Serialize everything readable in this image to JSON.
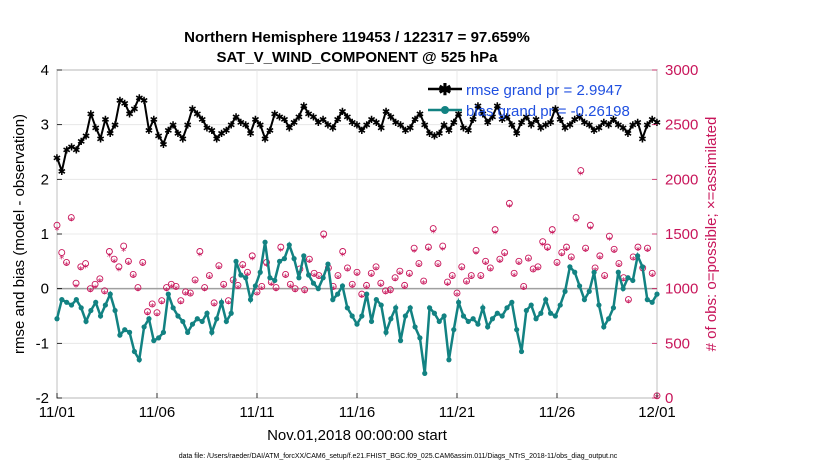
{
  "chart_data": {
    "type": "line",
    "title": "Northern Hemisphere 119453 / 122317 = 97.659%",
    "subtitle": "SAT_V_WIND_COMPONENT @ 525 hPa",
    "xlabel": "Nov.01,2018 00:00:00 start",
    "ylabel": "rmse and bias (model - observation)",
    "y2label": "# of obs: o=possible; ×=assimilated",
    "footer": "data file: /Users/raeder/DAI/ATM_forcXX/CAM6_setup/f.e21.FHIST_BGC.f09_025.CAM6assim.011/Diags_NTrS_2018-11/obs_diag_output.nc",
    "x_ticks": [
      "11/01",
      "11/06",
      "11/11",
      "11/16",
      "11/21",
      "11/26",
      "12/01"
    ],
    "xlim": [
      0,
      30
    ],
    "ylim": [
      -2,
      4
    ],
    "y_ticks": [
      "-2",
      "-1",
      "0",
      "1",
      "2",
      "3",
      "4"
    ],
    "y2lim": [
      0,
      3000
    ],
    "y2_ticks": [
      "0",
      "500",
      "1000",
      "1500",
      "2000",
      "2500",
      "3000"
    ],
    "grid": true,
    "legend_position": "top-right",
    "colors": {
      "rmse": "#000000",
      "bias": "#128282",
      "obs": "#c8155a",
      "legend_text": "#1f4fe0",
      "zero_line": "#a0a0a0"
    },
    "series": [
      {
        "name": "rmse grand pr = 2.9947",
        "axis": "left",
        "marker": "star",
        "values": [
          2.4,
          2.15,
          2.55,
          2.6,
          2.55,
          2.7,
          2.8,
          3.2,
          2.95,
          2.75,
          3.1,
          2.85,
          3.0,
          3.45,
          3.4,
          3.2,
          3.3,
          3.5,
          3.45,
          2.9,
          3.1,
          2.8,
          2.65,
          2.9,
          3.0,
          2.85,
          2.75,
          3.0,
          3.3,
          3.2,
          3.1,
          2.95,
          2.9,
          2.75,
          2.85,
          2.9,
          3.0,
          3.15,
          3.05,
          3.0,
          2.85,
          3.1,
          3.0,
          2.75,
          2.9,
          3.2,
          3.15,
          3.1,
          2.95,
          3.05,
          3.15,
          3.35,
          3.2,
          3.15,
          3.05,
          3.1,
          3.0,
          2.95,
          3.1,
          3.25,
          3.15,
          3.05,
          3.0,
          2.9,
          3.0,
          3.1,
          3.05,
          2.95,
          3.25,
          3.15,
          3.05,
          3.0,
          2.9,
          2.95,
          3.1,
          3.2,
          3.0,
          2.85,
          2.8,
          2.85,
          3.0,
          2.9,
          3.05,
          3.2,
          2.95,
          2.9,
          3.1,
          3.35,
          3.2,
          3.05,
          3.15,
          3.35,
          3.1,
          3.15,
          3.0,
          2.85,
          3.05,
          3.15,
          3.0,
          3.1,
          2.95,
          3.0,
          3.05,
          3.3,
          3.1,
          2.95,
          3.0,
          3.1,
          3.15,
          3.05,
          3.0,
          2.9,
          2.95,
          3.05,
          3.0,
          3.1,
          3.0,
          2.95,
          2.85,
          3.0,
          3.05,
          2.75,
          3.0,
          3.1,
          3.05
        ]
      },
      {
        "name": "bias grand pr = -0.26198",
        "axis": "left",
        "marker": "circle",
        "values": [
          -0.55,
          -0.2,
          -0.25,
          -0.3,
          -0.2,
          -0.35,
          -0.6,
          -0.4,
          -0.25,
          -0.5,
          -0.3,
          -0.1,
          -0.4,
          -0.85,
          -0.75,
          -0.8,
          -1.15,
          -1.3,
          -0.7,
          -0.55,
          -0.95,
          -0.9,
          -0.8,
          -0.1,
          -0.35,
          -0.5,
          -0.6,
          -0.8,
          -0.65,
          -0.55,
          -0.6,
          -0.45,
          -0.8,
          -0.55,
          -0.25,
          -0.6,
          -0.45,
          0.5,
          0.25,
          0.2,
          -0.2,
          0.05,
          0.3,
          0.85,
          0.2,
          0.15,
          0.5,
          0.55,
          0.8,
          0.55,
          0.2,
          0.6,
          0.25,
          0.1,
          0.0,
          0.2,
          0.45,
          -0.2,
          -0.1,
          0.05,
          -0.35,
          -0.5,
          -0.65,
          -0.5,
          -0.1,
          -0.6,
          -0.2,
          -0.3,
          -0.8,
          -0.55,
          -0.35,
          -0.95,
          -0.5,
          -0.35,
          -0.7,
          -0.9,
          -1.55,
          -0.35,
          -0.45,
          -0.6,
          -0.5,
          -1.3,
          -0.75,
          -0.25,
          -0.5,
          -0.6,
          -0.55,
          -0.65,
          -0.35,
          -0.7,
          -0.55,
          -0.45,
          -0.5,
          -0.35,
          -0.25,
          -0.75,
          -1.15,
          -0.4,
          -0.3,
          -0.55,
          -0.45,
          -0.2,
          -0.45,
          -0.5,
          -0.3,
          -0.05,
          0.4,
          0.3,
          0.05,
          -0.2,
          -0.05,
          0.3,
          -0.3,
          -0.7,
          -0.55,
          -0.35,
          0.3,
          0.0,
          0.2,
          0.15,
          0.6,
          0.4,
          -0.2,
          -0.25,
          -0.1
        ]
      },
      {
        "name": "possible",
        "axis": "right",
        "marker": "circle-open",
        "values": [
          1580,
          1330,
          1240,
          1650,
          1050,
          1200,
          1230,
          1000,
          1040,
          1090,
          980,
          1340,
          1270,
          1200,
          1390,
          1250,
          1130,
          1010,
          1240,
          790,
          860,
          780,
          890,
          1010,
          1040,
          1020,
          890,
          970,
          960,
          1080,
          1340,
          1010,
          1120,
          870,
          1210,
          1040,
          890,
          1080,
          1030,
          1220,
          1150,
          1300,
          970,
          1020,
          1240,
          1060,
          1010,
          1380,
          1130,
          1040,
          1000,
          1180,
          990,
          1270,
          1140,
          1120,
          1500,
          1190,
          1020,
          1120,
          1340,
          1190,
          1040,
          1150,
          950,
          1030,
          1140,
          1200,
          1050,
          980,
          990,
          1100,
          1160,
          1030,
          1140,
          1370,
          1230,
          1070,
          1380,
          1550,
          1230,
          1390,
          1060,
          1120,
          960,
          1200,
          1070,
          1120,
          1350,
          1120,
          1250,
          1190,
          1540,
          1270,
          1330,
          1780,
          1140,
          1250,
          1020,
          1280,
          1180,
          1200,
          1430,
          1380,
          1540,
          1240,
          1330,
          1380,
          1290,
          1650,
          2080,
          1370,
          1580,
          1190,
          1300,
          1120,
          1480,
          1360,
          1230,
          1100,
          900,
          1290,
          1380,
          1190,
          1370,
          1140,
          20
        ]
      },
      {
        "name": "assimilated",
        "axis": "right",
        "marker": "star",
        "values": [
          1540,
          1280,
          1220,
          1630,
          1020,
          1180,
          1200,
          980,
          1010,
          1070,
          960,
          1300,
          1250,
          1170,
          1350,
          1230,
          1110,
          990,
          1220,
          770,
          840,
          760,
          870,
          990,
          1020,
          1000,
          870,
          950,
          940,
          1060,
          1310,
          990,
          1100,
          850,
          1190,
          1020,
          870,
          1060,
          1010,
          1200,
          1130,
          1270,
          950,
          1000,
          1210,
          1040,
          990,
          1350,
          1110,
          1020,
          980,
          1150,
          970,
          1250,
          1120,
          1100,
          1470,
          1170,
          1000,
          1100,
          1310,
          1170,
          1020,
          1130,
          930,
          1010,
          1120,
          1180,
          1030,
          960,
          970,
          1080,
          1140,
          1010,
          1120,
          1340,
          1210,
          1050,
          1360,
          1520,
          1210,
          1360,
          1040,
          1100,
          940,
          1180,
          1050,
          1100,
          1320,
          1100,
          1230,
          1170,
          1510,
          1250,
          1310,
          1750,
          1120,
          1230,
          1000,
          1260,
          1160,
          1180,
          1400,
          1360,
          1510,
          1220,
          1310,
          1360,
          1270,
          1620,
          2050,
          1350,
          1550,
          1170,
          1280,
          1100,
          1450,
          1340,
          1210,
          1080,
          880,
          1270,
          1360,
          1170,
          1350,
          1120,
          10
        ]
      }
    ]
  }
}
